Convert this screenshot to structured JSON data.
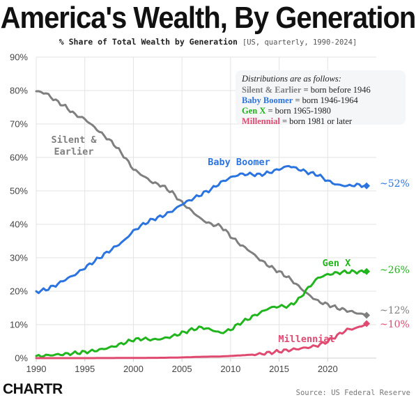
{
  "title": "America's Wealth, By Generation",
  "subtitle": {
    "main": "% Share of Total Wealth by Generation",
    "detail": "[US, quarterly, 1990-2024]"
  },
  "logo": "CHARTR",
  "source": "Source: US Federal Reserve",
  "colors": {
    "silent": "#7f7f7f",
    "boomer": "#2b74e0",
    "genx": "#20b51c",
    "millennial": "#e04a70",
    "grid": "#e3e3e3",
    "axis": "#cfcfcf"
  },
  "legend": {
    "heading": "Distributions are as follows:",
    "items": [
      {
        "name": "Silent & Earlier",
        "rest": " = born before 1946",
        "color": "#7f7f7f"
      },
      {
        "name": "Baby Boomer",
        "rest": " = born 1946-1964",
        "color": "#2b74e0"
      },
      {
        "name": "Gen X",
        "rest": " = born 1965-1980",
        "color": "#20b51c"
      },
      {
        "name": "Millennial",
        "rest": " = born 1981 or later",
        "color": "#e04a70"
      }
    ]
  },
  "chart_data": {
    "type": "line",
    "title": "America's Wealth, By Generation",
    "subtitle": "% Share of Total Wealth by Generation [US, quarterly, 1990-2024]",
    "xlim": [
      1990,
      2025
    ],
    "ylim": [
      0,
      90
    ],
    "xticks": [
      1990,
      1995,
      2000,
      2005,
      2010,
      2015,
      2020
    ],
    "xtick_labels": [
      "1990",
      "1995",
      "2000",
      "2005",
      "2010",
      "2015",
      "2020"
    ],
    "yticks": [
      0,
      10,
      20,
      30,
      40,
      50,
      60,
      70,
      80,
      90
    ],
    "ytick_labels": [
      "0%",
      "10%",
      "20%",
      "30%",
      "40%",
      "50%",
      "60%",
      "70%",
      "80%",
      "90%"
    ],
    "grid": true,
    "legend_position": "top-right",
    "series": [
      {
        "name": "Silent & Earlier",
        "key": "silent",
        "label_lines": [
          "Silent &",
          "Earlier"
        ],
        "end_label": "~12%",
        "points": [
          [
            1990,
            79.8
          ],
          [
            1991,
            79.2
          ],
          [
            1992,
            77.0
          ],
          [
            1993,
            75.2
          ],
          [
            1994,
            72.8
          ],
          [
            1995,
            71.5
          ],
          [
            1996,
            69.0
          ],
          [
            1997,
            66.5
          ],
          [
            1998,
            64.0
          ],
          [
            1999,
            60.5
          ],
          [
            2000,
            56.5
          ],
          [
            2001,
            54.5
          ],
          [
            2002,
            52.5
          ],
          [
            2003,
            51.5
          ],
          [
            2004,
            49.5
          ],
          [
            2005,
            46.5
          ],
          [
            2006,
            44.0
          ],
          [
            2007,
            41.5
          ],
          [
            2008,
            40.0
          ],
          [
            2009,
            39.5
          ],
          [
            2010,
            36.5
          ],
          [
            2011,
            34.0
          ],
          [
            2012,
            32.0
          ],
          [
            2013,
            29.5
          ],
          [
            2014,
            27.5
          ],
          [
            2015,
            25.8
          ],
          [
            2016,
            24.0
          ],
          [
            2017,
            21.5
          ],
          [
            2018,
            19.0
          ],
          [
            2019,
            17.0
          ],
          [
            2020,
            16.0
          ],
          [
            2021,
            15.0
          ],
          [
            2022,
            14.2
          ],
          [
            2023,
            13.5
          ],
          [
            2024,
            12.8
          ]
        ]
      },
      {
        "name": "Baby Boomer",
        "key": "boomer",
        "label_lines": [
          "Baby Boomer"
        ],
        "end_label": "~52%",
        "points": [
          [
            1990,
            19.8
          ],
          [
            1991,
            20.5
          ],
          [
            1992,
            21.8
          ],
          [
            1993,
            23.5
          ],
          [
            1994,
            25.0
          ],
          [
            1995,
            27.0
          ],
          [
            1996,
            29.0
          ],
          [
            1997,
            31.0
          ],
          [
            1998,
            33.0
          ],
          [
            1999,
            35.0
          ],
          [
            2000,
            38.0
          ],
          [
            2001,
            40.0
          ],
          [
            2002,
            41.5
          ],
          [
            2003,
            42.5
          ],
          [
            2004,
            44.0
          ],
          [
            2005,
            46.0
          ],
          [
            2006,
            47.5
          ],
          [
            2007,
            49.0
          ],
          [
            2008,
            50.5
          ],
          [
            2009,
            52.5
          ],
          [
            2010,
            54.0
          ],
          [
            2011,
            55.0
          ],
          [
            2012,
            55.0
          ],
          [
            2013,
            54.8
          ],
          [
            2014,
            55.5
          ],
          [
            2015,
            56.5
          ],
          [
            2016,
            57.5
          ],
          [
            2017,
            56.5
          ],
          [
            2018,
            55.5
          ],
          [
            2019,
            54.8
          ],
          [
            2020,
            53.0
          ],
          [
            2021,
            51.8
          ],
          [
            2022,
            51.5
          ],
          [
            2023,
            51.8
          ],
          [
            2024,
            51.5
          ]
        ]
      },
      {
        "name": "Gen X",
        "key": "genx",
        "label_lines": [
          "Gen X"
        ],
        "end_label": "~26%",
        "points": [
          [
            1990,
            0.5
          ],
          [
            1991,
            0.8
          ],
          [
            1992,
            1.0
          ],
          [
            1993,
            1.2
          ],
          [
            1994,
            1.5
          ],
          [
            1995,
            1.8
          ],
          [
            1996,
            2.2
          ],
          [
            1997,
            2.8
          ],
          [
            1998,
            3.5
          ],
          [
            1999,
            4.5
          ],
          [
            2000,
            5.5
          ],
          [
            2001,
            5.8
          ],
          [
            2002,
            5.5
          ],
          [
            2003,
            5.8
          ],
          [
            2004,
            6.5
          ],
          [
            2005,
            7.5
          ],
          [
            2006,
            8.5
          ],
          [
            2007,
            9.2
          ],
          [
            2008,
            8.5
          ],
          [
            2009,
            7.5
          ],
          [
            2010,
            8.5
          ],
          [
            2011,
            10.5
          ],
          [
            2012,
            12.0
          ],
          [
            2013,
            13.5
          ],
          [
            2014,
            15.0
          ],
          [
            2015,
            15.5
          ],
          [
            2016,
            15.5
          ],
          [
            2017,
            17.5
          ],
          [
            2018,
            21.0
          ],
          [
            2019,
            24.0
          ],
          [
            2020,
            25.0
          ],
          [
            2021,
            25.5
          ],
          [
            2022,
            25.8
          ],
          [
            2023,
            25.8
          ],
          [
            2024,
            25.9
          ]
        ]
      },
      {
        "name": "Millennial",
        "key": "millennial",
        "label_lines": [
          "Millennial"
        ],
        "end_label": "~10%",
        "points": [
          [
            1990,
            0.0
          ],
          [
            1995,
            0.0
          ],
          [
            2000,
            0.05
          ],
          [
            2003,
            0.1
          ],
          [
            2005,
            0.2
          ],
          [
            2007,
            0.4
          ],
          [
            2009,
            0.5
          ],
          [
            2011,
            0.8
          ],
          [
            2013,
            1.2
          ],
          [
            2014,
            1.6
          ],
          [
            2015,
            2.0
          ],
          [
            2016,
            2.4
          ],
          [
            2017,
            2.8
          ],
          [
            2018,
            3.2
          ],
          [
            2019,
            3.8
          ],
          [
            2020,
            5.0
          ],
          [
            2021,
            6.8
          ],
          [
            2022,
            8.5
          ],
          [
            2023,
            9.0
          ],
          [
            2024,
            10.3
          ]
        ]
      }
    ]
  }
}
